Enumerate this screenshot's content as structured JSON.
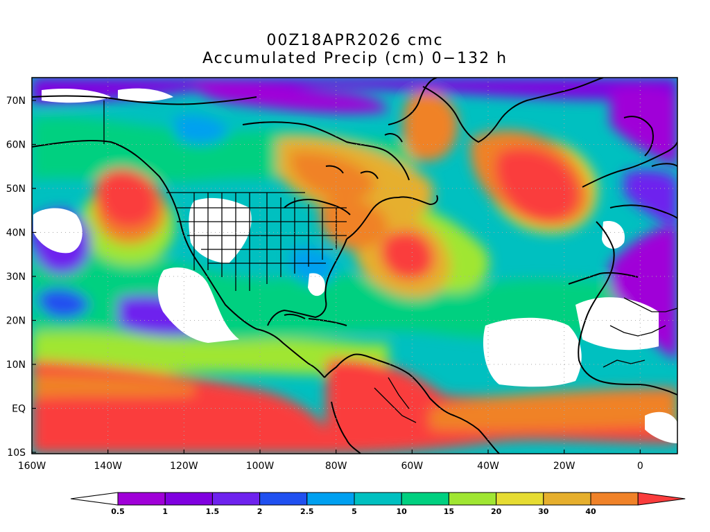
{
  "title": {
    "line1": "00Z18APR2026 cmc",
    "line2": "Accumulated Precip (cm) 0−132 h"
  },
  "map": {
    "lat_labels": [
      "70N",
      "60N",
      "50N",
      "40N",
      "30N",
      "20N",
      "10N",
      "EQ",
      "10S"
    ],
    "lon_labels": [
      "160W",
      "140W",
      "120W",
      "100W",
      "80W",
      "60W",
      "40W",
      "20W",
      "0"
    ]
  },
  "colorbar": {
    "levels": [
      "0.5",
      "1",
      "1.5",
      "2",
      "2.5",
      "5",
      "10",
      "15",
      "20",
      "30",
      "40"
    ],
    "colors": [
      "#ffffff",
      "#a000d8",
      "#8000e0",
      "#6e22ee",
      "#2050f0",
      "#00a0f0",
      "#00c0c0",
      "#00d080",
      "#a0e632",
      "#e6dc32",
      "#e6af2d",
      "#f08228",
      "#fa3c3c"
    ]
  }
}
